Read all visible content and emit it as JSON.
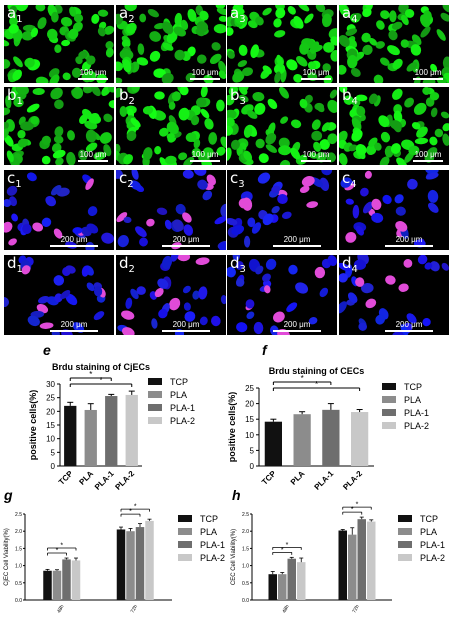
{
  "figure": {
    "micrographs": [
      {
        "row": "a",
        "color": "green",
        "scale": "100 μm",
        "labels": [
          {
            "letter": "a",
            "sub": "1"
          },
          {
            "letter": "a",
            "sub": "2"
          },
          {
            "letter": "a",
            "sub": "3"
          },
          {
            "letter": "a",
            "sub": "4"
          }
        ]
      },
      {
        "row": "b",
        "color": "green",
        "scale": "100 μm",
        "labels": [
          {
            "letter": "b",
            "sub": "1"
          },
          {
            "letter": "b",
            "sub": "2"
          },
          {
            "letter": "b",
            "sub": "3"
          },
          {
            "letter": "b",
            "sub": "4"
          }
        ]
      },
      {
        "row": "c",
        "color": "blue",
        "scale": "200 μm",
        "labels": [
          {
            "letter": "c",
            "sub": "1"
          },
          {
            "letter": "c",
            "sub": "2"
          },
          {
            "letter": "c",
            "sub": "3"
          },
          {
            "letter": "c",
            "sub": "4"
          }
        ]
      },
      {
        "row": "d",
        "color": "blue",
        "scale": "200 μm",
        "labels": [
          {
            "letter": "d",
            "sub": "1"
          },
          {
            "letter": "d",
            "sub": "2"
          },
          {
            "letter": "d",
            "sub": "3"
          },
          {
            "letter": "d",
            "sub": "4"
          }
        ]
      }
    ],
    "colors": {
      "TCP": "#111111",
      "PLA": "#8c8c8c",
      "PLA-1": "#6e6e6e",
      "PLA-2": "#c8c8c8",
      "green": "#2fd22f",
      "blue": "#1919d6",
      "magenta": "#e14bd8"
    }
  },
  "chart_data": [
    {
      "id": "e",
      "type": "bar",
      "title": "Brdu staining of CjECs",
      "ylabel": "positive cells(%)",
      "categories": [
        "TCP",
        "PLA",
        "PLA-1",
        "PLA-2"
      ],
      "values": [
        22,
        20.5,
        25.6,
        26
      ],
      "errors": [
        1.3,
        2.3,
        0.6,
        1.4
      ],
      "ylim": [
        0,
        30
      ],
      "yticks": [
        0,
        5,
        10,
        15,
        20,
        25,
        30
      ],
      "significance": [
        {
          "from": 0,
          "to": 2,
          "label": "*"
        },
        {
          "from": 0,
          "to": 3,
          "label": "*"
        }
      ],
      "legend": [
        "TCP",
        "PLA",
        "PLA-1",
        "PLA-2"
      ]
    },
    {
      "id": "f",
      "type": "bar",
      "title": "Brdu staining of CECs",
      "ylabel": "positive cells(%)",
      "categories": [
        "TCP",
        "PLA",
        "PLA-1",
        "PLA-2"
      ],
      "values": [
        14.2,
        16.6,
        18,
        17.3
      ],
      "errors": [
        0.8,
        0.8,
        2,
        0.8
      ],
      "ylim": [
        0,
        25
      ],
      "yticks": [
        0,
        5,
        10,
        15,
        20,
        25
      ],
      "significance": [
        {
          "from": 0,
          "to": 2,
          "label": "*"
        },
        {
          "from": 0,
          "to": 3,
          "label": "*"
        }
      ],
      "legend": [
        "TCP",
        "PLA",
        "PLA-1",
        "PLA-2"
      ]
    },
    {
      "id": "g",
      "type": "bar",
      "ylabel": "CjEC Cell Viability(%)",
      "categories": [
        "48h",
        "72h"
      ],
      "series": [
        {
          "name": "TCP",
          "values": [
            0.85,
            2.05
          ]
        },
        {
          "name": "PLA",
          "values": [
            0.85,
            2.0
          ]
        },
        {
          "name": "PLA-1",
          "values": [
            1.18,
            2.12
          ]
        },
        {
          "name": "PLA-2",
          "values": [
            1.15,
            2.3
          ]
        }
      ],
      "errors": [
        [
          0.04,
          0.07
        ],
        [
          0.03,
          0.08
        ],
        [
          0.04,
          0.1
        ],
        [
          0.07,
          0.05
        ]
      ],
      "ylim": [
        0,
        2.5
      ],
      "yticks": [
        "0.0",
        "0.5",
        "1.0",
        "1.5",
        "2.0",
        "2.5"
      ],
      "significance": [
        {
          "group": 0,
          "from": 0,
          "to": 2,
          "label": "*"
        },
        {
          "group": 0,
          "from": 0,
          "to": 3,
          "label": "*"
        },
        {
          "group": 1,
          "from": 0,
          "to": 2,
          "label": "*"
        },
        {
          "group": 1,
          "from": 0,
          "to": 3,
          "label": "*"
        }
      ]
    },
    {
      "id": "h",
      "type": "bar",
      "ylabel": "CEC Cell Viability(%)",
      "categories": [
        "48h",
        "72h"
      ],
      "series": [
        {
          "name": "TCP",
          "values": [
            0.75,
            2.02
          ]
        },
        {
          "name": "PLA",
          "values": [
            0.75,
            1.9
          ]
        },
        {
          "name": "PLA-1",
          "values": [
            1.2,
            2.35
          ]
        },
        {
          "name": "PLA-2",
          "values": [
            1.1,
            2.28
          ]
        }
      ],
      "errors": [
        [
          0.08,
          0.03
        ],
        [
          0.05,
          0.2
        ],
        [
          0.04,
          0.06
        ],
        [
          0.12,
          0.05
        ]
      ],
      "ylim": [
        0,
        2.5
      ],
      "yticks": [
        "0.0",
        "0.5",
        "1.0",
        "1.5",
        "2.0",
        "2.5"
      ],
      "significance": [
        {
          "group": 0,
          "from": 0,
          "to": 2,
          "label": "*"
        },
        {
          "group": 0,
          "from": 0,
          "to": 3,
          "label": "*"
        },
        {
          "group": 1,
          "from": 0,
          "to": 2,
          "label": "*"
        },
        {
          "group": 1,
          "from": 0,
          "to": 3,
          "label": "*"
        }
      ]
    }
  ]
}
